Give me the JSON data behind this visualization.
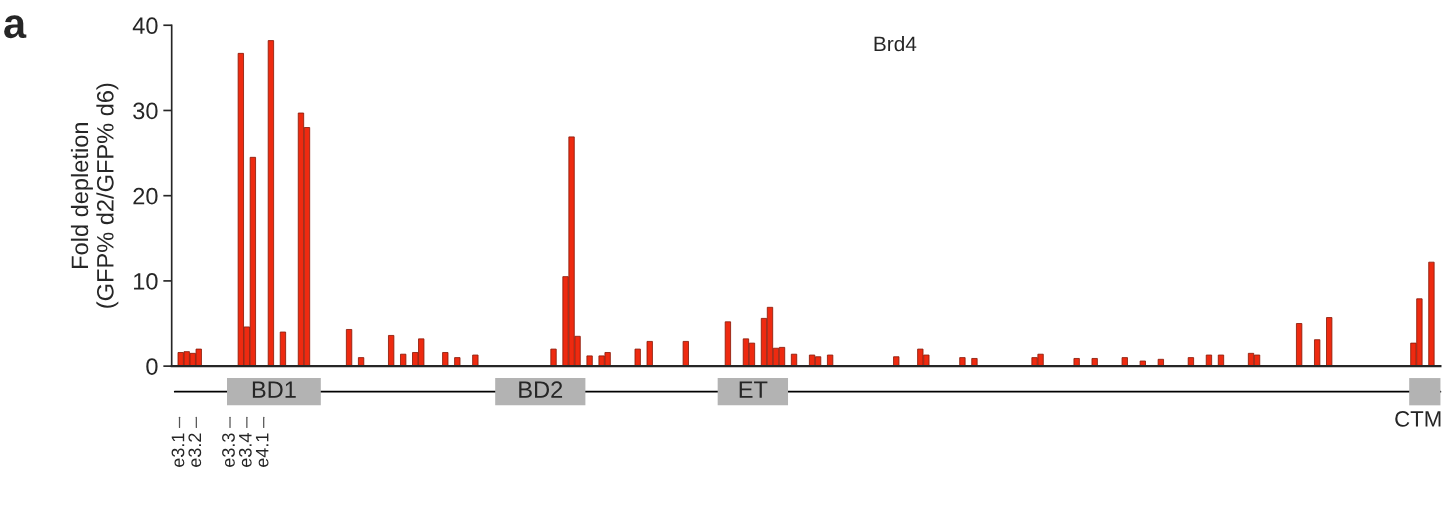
{
  "chart_data": {
    "type": "bar",
    "title": "Brd4",
    "ylabel": "Fold depletion\n(GFP% d2/GFP% d6)",
    "annotations": [
      "a",
      "BD1",
      "BD2",
      "ET",
      "CTM",
      "e3.1",
      "e3.2",
      "e3.3",
      "e3.4",
      "e4.1"
    ],
    "categories": [
      null,
      null,
      null,
      null,
      null,
      null,
      null,
      null,
      null,
      null,
      null,
      null,
      null,
      null,
      null,
      null,
      null,
      null,
      null,
      null,
      null,
      null,
      null,
      null,
      null,
      null,
      null,
      null,
      null,
      null,
      null,
      null,
      null,
      null,
      null,
      null,
      null,
      null,
      null,
      null,
      null,
      null,
      null,
      null,
      null,
      null,
      null,
      null,
      null,
      null,
      null,
      null,
      null,
      null,
      null,
      null,
      null,
      null,
      null,
      null,
      null,
      null,
      null,
      null,
      null,
      null,
      null,
      null,
      null,
      null,
      null,
      null,
      null,
      null,
      null,
      null,
      null,
      null,
      null,
      null,
      null,
      null,
      null,
      null,
      null,
      null,
      null,
      null,
      null,
      null,
      null,
      null,
      null,
      null,
      null,
      null,
      null,
      null,
      null,
      null,
      null,
      null,
      null,
      null,
      null,
      null,
      null,
      null,
      null,
      null,
      null,
      null,
      null,
      null,
      null,
      null,
      null,
      null,
      null,
      null,
      null,
      null,
      null,
      null,
      null,
      null,
      null,
      null,
      null,
      null,
      null,
      null,
      null,
      null,
      null,
      null,
      null,
      null,
      null,
      null,
      null,
      null,
      null,
      null,
      null,
      null,
      null,
      null,
      null,
      null,
      null,
      null,
      null,
      null,
      null,
      null,
      null,
      null,
      null,
      null,
      null,
      null,
      null,
      null,
      null,
      null,
      null,
      null,
      null,
      null,
      null,
      null,
      null,
      null,
      null,
      null,
      null,
      null,
      null,
      null,
      null,
      null,
      null,
      null,
      null,
      null,
      null,
      null,
      null,
      null,
      null,
      null,
      null,
      null,
      null,
      null,
      null,
      null,
      null,
      null,
      null,
      null,
      null,
      null,
      null,
      null,
      null,
      null,
      null,
      null,
      null
    ],
    "values": [
      null,
      1.6,
      1.7,
      1.5,
      2.0,
      null,
      null,
      null,
      null,
      null,
      null,
      36.7,
      4.6,
      24.5,
      null,
      null,
      38.2,
      null,
      4.0,
      null,
      null,
      29.7,
      28.0,
      null,
      null,
      null,
      null,
      null,
      null,
      4.3,
      null,
      1.0,
      null,
      null,
      null,
      null,
      3.6,
      null,
      1.4,
      null,
      1.6,
      3.2,
      null,
      null,
      null,
      1.6,
      null,
      1.0,
      null,
      null,
      1.3,
      null,
      null,
      null,
      null,
      null,
      null,
      null,
      null,
      null,
      null,
      null,
      null,
      2.0,
      null,
      10.5,
      26.9,
      3.5,
      null,
      1.2,
      null,
      1.2,
      1.6,
      null,
      null,
      null,
      null,
      2.0,
      null,
      2.9,
      null,
      null,
      null,
      null,
      null,
      2.9,
      null,
      null,
      null,
      null,
      null,
      null,
      5.2,
      null,
      null,
      3.2,
      2.7,
      null,
      5.6,
      6.9,
      2.1,
      2.2,
      null,
      1.4,
      null,
      null,
      1.3,
      1.1,
      null,
      1.3,
      null,
      null,
      null,
      null,
      null,
      null,
      null,
      null,
      null,
      null,
      1.1,
      null,
      null,
      null,
      2.0,
      1.3,
      null,
      null,
      null,
      null,
      null,
      1.0,
      null,
      0.9,
      null,
      null,
      null,
      null,
      null,
      null,
      null,
      null,
      null,
      1.0,
      1.4,
      null,
      null,
      null,
      null,
      null,
      0.9,
      null,
      null,
      0.9,
      null,
      null,
      null,
      null,
      1.0,
      null,
      null,
      0.6,
      null,
      null,
      0.8,
      null,
      null,
      null,
      null,
      1.0,
      null,
      null,
      1.3,
      null,
      1.3,
      null,
      null,
      null,
      null,
      1.5,
      1.3,
      null,
      null,
      null,
      null,
      null,
      null,
      5.0,
      null,
      null,
      3.1,
      null,
      5.7,
      null,
      null,
      null,
      null,
      null,
      null,
      null,
      null,
      null,
      null,
      null,
      null,
      null,
      2.7,
      7.9,
      null,
      12.2,
      null
    ],
    "color": "#ee2a10",
    "ylim": [
      0,
      40
    ],
    "yticks": [
      0,
      10,
      20,
      30,
      40
    ]
  }
}
